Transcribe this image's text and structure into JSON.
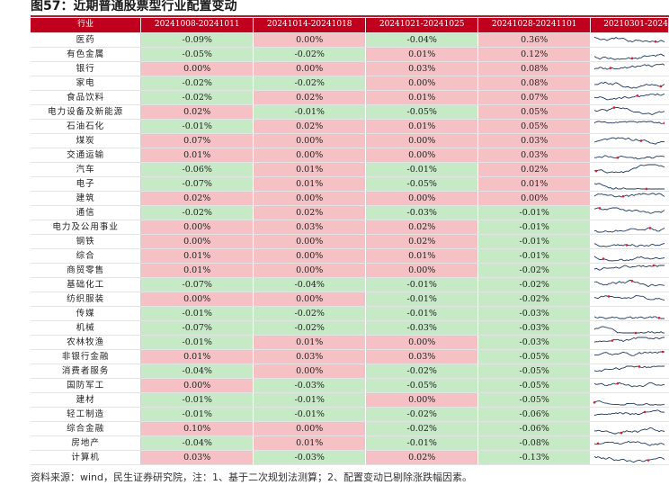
{
  "title": "图57：近期普通股票型行业配置变动",
  "headers": [
    "行业",
    "20241008-20241011",
    "20241014-20241018",
    "20241021-20241025",
    "20241028-20241101",
    "20210301-2024"
  ],
  "rows": [
    {
      "industry": "医药",
      "v": [
        "-0.09%",
        "0.00%",
        "-0.04%",
        "0.36%"
      ]
    },
    {
      "industry": "有色金属",
      "v": [
        "-0.05%",
        "-0.02%",
        "0.01%",
        "0.12%"
      ]
    },
    {
      "industry": "银行",
      "v": [
        "0.00%",
        "0.00%",
        "0.03%",
        "0.08%"
      ]
    },
    {
      "industry": "家电",
      "v": [
        "-0.02%",
        "-0.02%",
        "0.00%",
        "0.08%"
      ]
    },
    {
      "industry": "食品饮料",
      "v": [
        "-0.02%",
        "0.02%",
        "0.01%",
        "0.07%"
      ]
    },
    {
      "industry": "电力设备及新能源",
      "v": [
        "0.02%",
        "-0.01%",
        "-0.05%",
        "0.05%"
      ]
    },
    {
      "industry": "石油石化",
      "v": [
        "-0.01%",
        "0.02%",
        "0.01%",
        "0.05%"
      ]
    },
    {
      "industry": "煤炭",
      "v": [
        "0.07%",
        "0.00%",
        "0.00%",
        "0.03%"
      ]
    },
    {
      "industry": "交通运输",
      "v": [
        "0.01%",
        "0.00%",
        "0.00%",
        "0.03%"
      ]
    },
    {
      "industry": "汽车",
      "v": [
        "-0.06%",
        "0.01%",
        "-0.01%",
        "0.02%"
      ]
    },
    {
      "industry": "电子",
      "v": [
        "-0.07%",
        "0.01%",
        "-0.05%",
        "0.01%"
      ]
    },
    {
      "industry": "建筑",
      "v": [
        "0.02%",
        "0.00%",
        "0.00%",
        "0.00%"
      ]
    },
    {
      "industry": "通信",
      "v": [
        "-0.02%",
        "0.02%",
        "-0.03%",
        "-0.01%"
      ]
    },
    {
      "industry": "电力及公用事业",
      "v": [
        "0.00%",
        "0.03%",
        "0.02%",
        "-0.01%"
      ]
    },
    {
      "industry": "钢铁",
      "v": [
        "0.00%",
        "0.00%",
        "0.02%",
        "-0.01%"
      ]
    },
    {
      "industry": "综合",
      "v": [
        "0.01%",
        "0.00%",
        "0.01%",
        "-0.01%"
      ]
    },
    {
      "industry": "商贸零售",
      "v": [
        "0.01%",
        "0.00%",
        "0.00%",
        "-0.02%"
      ]
    },
    {
      "industry": "基础化工",
      "v": [
        "-0.07%",
        "-0.04%",
        "-0.01%",
        "-0.02%"
      ]
    },
    {
      "industry": "纺织服装",
      "v": [
        "0.00%",
        "0.00%",
        "-0.01%",
        "-0.02%"
      ]
    },
    {
      "industry": "传媒",
      "v": [
        "-0.01%",
        "-0.02%",
        "-0.01%",
        "-0.03%"
      ]
    },
    {
      "industry": "机械",
      "v": [
        "-0.07%",
        "-0.02%",
        "-0.03%",
        "-0.03%"
      ]
    },
    {
      "industry": "农林牧渔",
      "v": [
        "-0.01%",
        "0.01%",
        "0.00%",
        "-0.03%"
      ]
    },
    {
      "industry": "非银行金融",
      "v": [
        "0.01%",
        "0.03%",
        "0.03%",
        "-0.05%"
      ]
    },
    {
      "industry": "消费者服务",
      "v": [
        "-0.04%",
        "0.00%",
        "-0.02%",
        "-0.05%"
      ]
    },
    {
      "industry": "国防军工",
      "v": [
        "0.00%",
        "-0.03%",
        "-0.05%",
        "-0.05%"
      ]
    },
    {
      "industry": "建材",
      "v": [
        "-0.01%",
        "-0.01%",
        "0.00%",
        "-0.05%"
      ]
    },
    {
      "industry": "轻工制造",
      "v": [
        "-0.01%",
        "-0.01%",
        "-0.02%",
        "-0.06%"
      ]
    },
    {
      "industry": "综合金融",
      "v": [
        "0.10%",
        "0.00%",
        "-0.02%",
        "-0.06%"
      ]
    },
    {
      "industry": "房地产",
      "v": [
        "-0.04%",
        "0.01%",
        "-0.01%",
        "-0.08%"
      ]
    },
    {
      "industry": "计算机",
      "v": [
        "0.03%",
        "-0.03%",
        "0.02%",
        "-0.13%"
      ]
    }
  ],
  "colors": {
    "header": "#c0001c",
    "increase": "#f5c1c4",
    "decrease": "#c6e9c6",
    "sparkline": "#1f3a5f",
    "sparkline_peak": "#e0182a"
  },
  "source": "资料来源：wind，民生证券研究院，注：1、基于二次规划法测算；2、配置变动已剔除涨跌幅因素。"
}
